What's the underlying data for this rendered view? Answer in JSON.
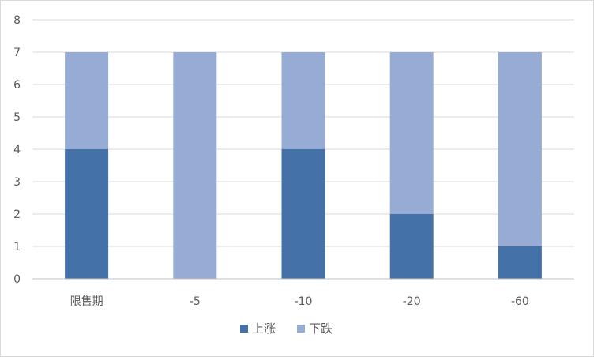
{
  "chart_data": {
    "type": "bar",
    "stacked": true,
    "categories": [
      "限售期",
      "-5",
      "-10",
      "-20",
      "-60"
    ],
    "series": [
      {
        "name": "上涨",
        "values": [
          4,
          0,
          4,
          2,
          1
        ],
        "color": "#4472a8"
      },
      {
        "name": "下跌",
        "values": [
          3,
          7,
          3,
          5,
          6
        ],
        "color": "#97acd4"
      }
    ],
    "ylim": [
      0,
      8
    ],
    "yticks": [
      0,
      1,
      2,
      3,
      4,
      5,
      6,
      7,
      8
    ],
    "grid": true,
    "legend": "bottom"
  }
}
